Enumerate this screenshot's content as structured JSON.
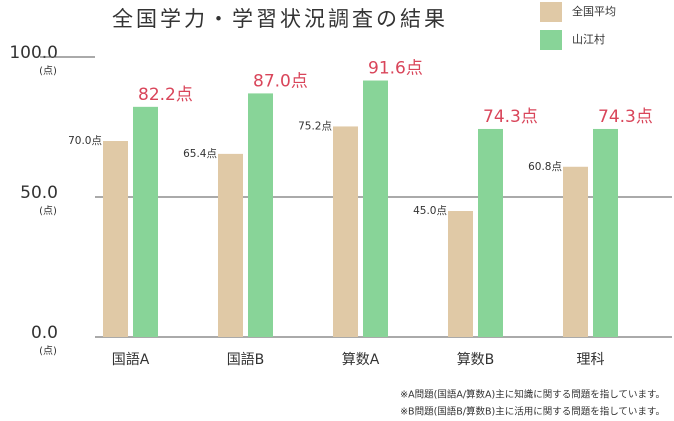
{
  "chart_data": {
    "type": "bar",
    "title": "全国学力・学習状況調査の結果",
    "categories": [
      "国語A",
      "国語B",
      "算数A",
      "算数B",
      "理科"
    ],
    "series": [
      {
        "name": "全国平均",
        "color": "#e0c9a6",
        "values": [
          70.0,
          65.4,
          75.2,
          45.0,
          60.8
        ],
        "value_labels": [
          "70.0点",
          "65.4点",
          "75.2点",
          "45.0点",
          "60.8点"
        ]
      },
      {
        "name": "山江村",
        "color": "#88d498",
        "values": [
          82.2,
          87.0,
          91.6,
          74.3,
          74.3
        ],
        "value_labels": [
          "82.2点",
          "87.0点",
          "91.6点",
          "74.3点",
          "74.3点"
        ]
      }
    ],
    "ylim": [
      0,
      100
    ],
    "yticks": [
      {
        "value": 0,
        "label": "0.0"
      },
      {
        "value": 50,
        "label": "50.0"
      },
      {
        "value": 100,
        "label": "100.0"
      }
    ],
    "y_unit": "(点)",
    "grid": true,
    "notes": [
      "※A問題(国語A/算数A)主に知識に関する問題を指しています。",
      "※B問題(国語B/算数B)主に活用に関する問題を指しています。"
    ]
  }
}
